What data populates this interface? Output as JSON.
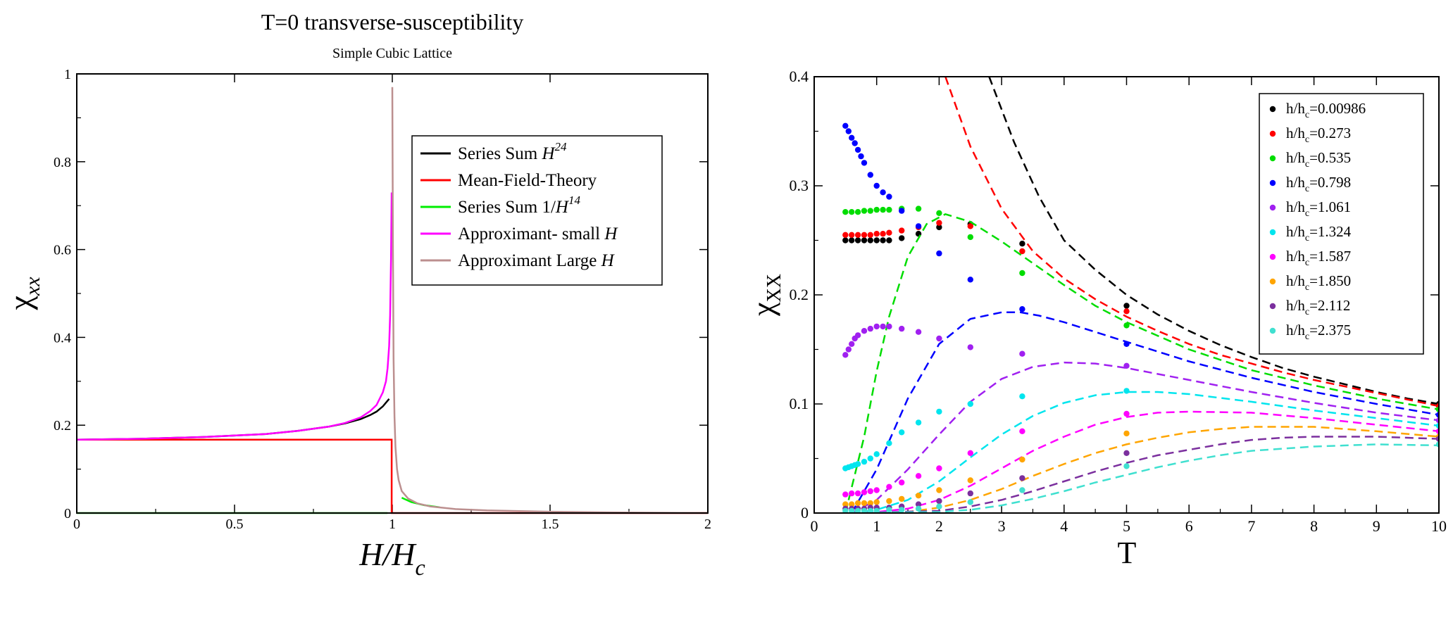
{
  "chart_data": [
    {
      "type": "line",
      "title": "T=0 transverse-susceptibility",
      "subtitle": "Simple Cubic Lattice",
      "xlabel": {
        "main": "H/H",
        "sub": "c"
      },
      "ylabel": {
        "main": "χ",
        "sub": "xx"
      },
      "xlim": [
        0,
        2
      ],
      "ylim": [
        0,
        1
      ],
      "xticks": [
        0,
        0.5,
        1,
        1.5,
        2
      ],
      "xtick_labels": [
        "0",
        "0.5",
        "1",
        "1.5",
        "2"
      ],
      "yticks": [
        0,
        0.2,
        0.4,
        0.6,
        0.8,
        1
      ],
      "ytick_labels": [
        "0",
        "0.2",
        "0.4",
        "0.6",
        "0.8",
        "1"
      ],
      "legend": [
        {
          "label": "Series Sum ",
          "italic": "H",
          "sup": "24",
          "color": "#000000"
        },
        {
          "label": "Mean-Field-Theory",
          "italic": "",
          "sup": "",
          "color": "#ff0000"
        },
        {
          "label": "Series Sum 1/",
          "italic": "H",
          "sup": "14",
          "color": "#00ee00"
        },
        {
          "label": "Approximant- small ",
          "italic": "H",
          "sup": "",
          "color": "#ff00ff"
        },
        {
          "label": "Approximant Large ",
          "italic": "H",
          "sup": "",
          "color": "#bc8f8f"
        }
      ],
      "series": [
        {
          "name": "Series Sum H^24",
          "color": "#000000",
          "x": [
            0,
            0.2,
            0.4,
            0.6,
            0.7,
            0.8,
            0.85,
            0.9,
            0.93,
            0.95,
            0.97,
            0.99
          ],
          "y": [
            0.167,
            0.169,
            0.173,
            0.18,
            0.187,
            0.197,
            0.204,
            0.214,
            0.223,
            0.231,
            0.243,
            0.26
          ]
        },
        {
          "name": "Mean-Field-Theory",
          "color": "#ff0000",
          "x": [
            0,
            0.998,
            0.998,
            2
          ],
          "y": [
            0.167,
            0.167,
            0.0,
            0.0
          ]
        },
        {
          "name": "Series Sum 1/H^14",
          "color": "#00ee00",
          "x": [
            0,
            0.985
          ],
          "y": [
            0.0,
            0.0
          ]
        },
        {
          "name": "Series Sum 1/H^14 (H>1)",
          "color": "#00ee00",
          "x": [
            1.03,
            1.06,
            1.1,
            1.15
          ],
          "y": [
            0.035,
            0.025,
            0.018,
            0.013
          ]
        },
        {
          "name": "Approximant- small H",
          "color": "#ff00ff",
          "x": [
            0,
            0.2,
            0.4,
            0.6,
            0.7,
            0.8,
            0.85,
            0.9,
            0.93,
            0.95,
            0.97,
            0.98,
            0.985,
            0.99,
            0.993,
            0.996,
            0.998
          ],
          "y": [
            0.167,
            0.169,
            0.173,
            0.18,
            0.187,
            0.197,
            0.205,
            0.218,
            0.232,
            0.246,
            0.275,
            0.3,
            0.33,
            0.38,
            0.45,
            0.58,
            0.73
          ]
        },
        {
          "name": "Approximant Large H",
          "color": "#bc8f8f",
          "x": [
            1.0,
            1.002,
            1.004,
            1.007,
            1.01,
            1.015,
            1.02,
            1.03,
            1.05,
            1.08,
            1.12,
            1.2,
            1.3,
            1.5,
            1.7,
            2.0
          ],
          "y": [
            0.97,
            0.6,
            0.35,
            0.22,
            0.15,
            0.1,
            0.075,
            0.05,
            0.033,
            0.022,
            0.015,
            0.009,
            0.006,
            0.003,
            0.0015,
            0.0
          ]
        }
      ]
    },
    {
      "type": "scatter",
      "title": "",
      "xlabel": {
        "main": "T",
        "sub": ""
      },
      "ylabel": {
        "main": "χ",
        "sub": "XX"
      },
      "xlim": [
        0,
        10
      ],
      "ylim": [
        0,
        0.4
      ],
      "xticks": [
        0,
        1,
        2,
        3,
        4,
        5,
        6,
        7,
        8,
        9,
        10
      ],
      "xtick_labels": [
        "0",
        "1",
        "2",
        "3",
        "4",
        "5",
        "6",
        "7",
        "8",
        "9",
        "10"
      ],
      "yticks": [
        0,
        0.1,
        0.2,
        0.3,
        0.4
      ],
      "ytick_labels": [
        "0",
        "0.1",
        "0.2",
        "0.3",
        "0.4"
      ],
      "legend": [
        {
          "prefix": "h/h",
          "sub": "c",
          "value": "=0.00986",
          "color": "#000000"
        },
        {
          "prefix": "h/h",
          "sub": "c",
          "value": "=0.273",
          "color": "#ff0000"
        },
        {
          "prefix": "h/h",
          "sub": "c",
          "value": "=0.535",
          "color": "#00dd00"
        },
        {
          "prefix": "h/h",
          "sub": "c",
          "value": "=0.798",
          "color": "#0000ff"
        },
        {
          "prefix": "h/h",
          "sub": "c",
          "value": "=1.061",
          "color": "#a020f0"
        },
        {
          "prefix": "h/h",
          "sub": "c",
          "value": "=1.324",
          "color": "#00e5ee"
        },
        {
          "prefix": "h/h",
          "sub": "c",
          "value": "=1.587",
          "color": "#ff00ff"
        },
        {
          "prefix": "h/h",
          "sub": "c",
          "value": "=1.850",
          "color": "#ffa500"
        },
        {
          "prefix": "h/h",
          "sub": "c",
          "value": "=2.112",
          "color": "#7b2f9e"
        },
        {
          "prefix": "h/h",
          "sub": "c",
          "value": "=2.375",
          "color": "#40e0d0"
        }
      ],
      "series": [
        {
          "name": "h/hc=0.00986",
          "color": "#000000",
          "points_x": [
            0.5,
            0.6,
            0.7,
            0.8,
            0.9,
            1.0,
            1.1,
            1.2,
            1.4,
            1.67,
            2.0,
            2.5,
            3.33,
            5.0,
            10.0
          ],
          "points_y": [
            0.25,
            0.25,
            0.25,
            0.25,
            0.25,
            0.25,
            0.25,
            0.25,
            0.252,
            0.256,
            0.262,
            0.265,
            0.247,
            0.19,
            0.1
          ],
          "curve_x": [
            2.8,
            3.2,
            3.6,
            4.0,
            4.5,
            5.0,
            5.5,
            6.0,
            6.5,
            7.0,
            7.5,
            8.0,
            8.5,
            9.0,
            9.5,
            10.0
          ],
          "curve_y": [
            0.4,
            0.34,
            0.29,
            0.25,
            0.223,
            0.2,
            0.182,
            0.167,
            0.154,
            0.143,
            0.133,
            0.125,
            0.118,
            0.111,
            0.105,
            0.1
          ]
        },
        {
          "name": "h/hc=0.273",
          "color": "#ff0000",
          "points_x": [
            0.5,
            0.6,
            0.7,
            0.8,
            0.9,
            1.0,
            1.1,
            1.2,
            1.4,
            1.67,
            2.0,
            2.5,
            3.33,
            5.0,
            10.0
          ],
          "points_y": [
            0.255,
            0.255,
            0.255,
            0.255,
            0.255,
            0.256,
            0.256,
            0.257,
            0.259,
            0.262,
            0.266,
            0.263,
            0.24,
            0.185,
            0.098
          ],
          "curve_x": [
            2.1,
            2.5,
            3.0,
            3.5,
            4.0,
            4.5,
            5.0,
            5.5,
            6.0,
            6.5,
            7.0,
            7.5,
            8.0,
            8.5,
            9.0,
            9.5,
            10.0
          ],
          "curve_y": [
            0.4,
            0.336,
            0.279,
            0.24,
            0.215,
            0.196,
            0.18,
            0.167,
            0.155,
            0.145,
            0.137,
            0.129,
            0.122,
            0.116,
            0.11,
            0.104,
            0.098
          ]
        },
        {
          "name": "h/hc=0.535",
          "color": "#00dd00",
          "points_x": [
            0.5,
            0.6,
            0.7,
            0.8,
            0.9,
            1.0,
            1.1,
            1.2,
            1.4,
            1.67,
            2.0,
            2.5,
            3.33,
            5.0,
            10.0
          ],
          "points_y": [
            0.276,
            0.276,
            0.276,
            0.277,
            0.277,
            0.278,
            0.278,
            0.278,
            0.279,
            0.279,
            0.275,
            0.253,
            0.22,
            0.172,
            0.095
          ],
          "curve_x": [
            0.5,
            0.8,
            1.0,
            1.2,
            1.5,
            1.8,
            2.1,
            2.5,
            3.0,
            3.5,
            4.0,
            4.5,
            5.0,
            6.0,
            7.0,
            8.0,
            9.0,
            10.0
          ],
          "curve_y": [
            0.0,
            0.07,
            0.13,
            0.18,
            0.235,
            0.265,
            0.274,
            0.267,
            0.249,
            0.229,
            0.209,
            0.19,
            0.175,
            0.15,
            0.131,
            0.117,
            0.105,
            0.095
          ]
        },
        {
          "name": "h/hc=0.798",
          "color": "#0000ff",
          "points_x": [
            0.5,
            0.55,
            0.6,
            0.65,
            0.7,
            0.75,
            0.8,
            0.9,
            1.0,
            1.1,
            1.2,
            1.4,
            1.67,
            2.0,
            2.5,
            3.33,
            5.0,
            10.0
          ],
          "points_y": [
            0.355,
            0.35,
            0.344,
            0.339,
            0.333,
            0.327,
            0.321,
            0.31,
            0.3,
            0.294,
            0.29,
            0.277,
            0.263,
            0.238,
            0.214,
            0.187,
            0.155,
            0.09
          ],
          "curve_x": [
            0.6,
            1.0,
            1.5,
            2.0,
            2.5,
            3.0,
            3.3,
            3.6,
            4.0,
            5.0,
            6.0,
            7.0,
            8.0,
            9.0,
            10.0
          ],
          "curve_y": [
            0.0,
            0.04,
            0.105,
            0.155,
            0.178,
            0.184,
            0.184,
            0.181,
            0.175,
            0.157,
            0.139,
            0.124,
            0.111,
            0.1,
            0.09
          ]
        },
        {
          "name": "h/hc=1.061",
          "color": "#a020f0",
          "points_x": [
            0.5,
            0.55,
            0.6,
            0.65,
            0.7,
            0.8,
            0.9,
            1.0,
            1.1,
            1.2,
            1.4,
            1.67,
            2.0,
            2.5,
            3.33,
            5.0,
            10.0
          ],
          "points_y": [
            0.145,
            0.15,
            0.155,
            0.16,
            0.163,
            0.167,
            0.169,
            0.171,
            0.171,
            0.171,
            0.169,
            0.166,
            0.16,
            0.152,
            0.146,
            0.135,
            0.085
          ],
          "curve_x": [
            0.6,
            1.0,
            1.5,
            2.0,
            2.5,
            3.0,
            3.5,
            4.0,
            4.5,
            5.0,
            6.0,
            7.0,
            8.0,
            9.0,
            10.0
          ],
          "curve_y": [
            0.0,
            0.012,
            0.04,
            0.072,
            0.102,
            0.123,
            0.134,
            0.138,
            0.137,
            0.133,
            0.122,
            0.111,
            0.101,
            0.092,
            0.085
          ]
        },
        {
          "name": "h/hc=1.324",
          "color": "#00e5ee",
          "points_x": [
            0.5,
            0.55,
            0.6,
            0.65,
            0.7,
            0.8,
            0.9,
            1.0,
            1.2,
            1.4,
            1.67,
            2.0,
            2.5,
            3.33,
            5.0,
            10.0
          ],
          "points_y": [
            0.041,
            0.042,
            0.043,
            0.044,
            0.045,
            0.047,
            0.05,
            0.054,
            0.064,
            0.074,
            0.083,
            0.093,
            0.1,
            0.107,
            0.112,
            0.08
          ],
          "curve_x": [
            0.6,
            1.0,
            1.5,
            2.0,
            2.5,
            3.0,
            3.5,
            4.0,
            4.5,
            5.0,
            5.5,
            6.0,
            7.0,
            8.0,
            9.0,
            10.0
          ],
          "curve_y": [
            0.0,
            0.003,
            0.012,
            0.029,
            0.051,
            0.072,
            0.089,
            0.101,
            0.108,
            0.111,
            0.111,
            0.109,
            0.102,
            0.094,
            0.087,
            0.08
          ]
        },
        {
          "name": "h/hc=1.587",
          "color": "#ff00ff",
          "points_x": [
            0.5,
            0.6,
            0.7,
            0.8,
            0.9,
            1.0,
            1.2,
            1.4,
            1.67,
            2.0,
            2.5,
            3.33,
            5.0,
            10.0
          ],
          "points_y": [
            0.017,
            0.018,
            0.018,
            0.019,
            0.02,
            0.021,
            0.024,
            0.028,
            0.034,
            0.041,
            0.055,
            0.075,
            0.091,
            0.075
          ],
          "curve_x": [
            0.6,
            1.0,
            1.5,
            2.0,
            2.5,
            3.0,
            3.5,
            4.0,
            4.5,
            5.0,
            5.5,
            6.0,
            7.0,
            8.0,
            9.0,
            10.0
          ],
          "curve_y": [
            0.0,
            0.001,
            0.004,
            0.012,
            0.025,
            0.041,
            0.057,
            0.07,
            0.081,
            0.088,
            0.092,
            0.093,
            0.092,
            0.087,
            0.081,
            0.075
          ]
        },
        {
          "name": "h/hc=1.850",
          "color": "#ffa500",
          "points_x": [
            0.5,
            0.6,
            0.7,
            0.8,
            0.9,
            1.0,
            1.2,
            1.4,
            1.67,
            2.0,
            2.5,
            3.33,
            5.0,
            10.0
          ],
          "points_y": [
            0.008,
            0.008,
            0.009,
            0.009,
            0.009,
            0.01,
            0.011,
            0.013,
            0.016,
            0.021,
            0.03,
            0.049,
            0.073,
            0.07
          ],
          "curve_x": [
            0.6,
            1.5,
            2.0,
            2.5,
            3.0,
            3.5,
            4.0,
            4.5,
            5.0,
            5.5,
            6.0,
            6.5,
            7.0,
            8.0,
            9.0,
            10.0
          ],
          "curve_y": [
            0.0,
            0.001,
            0.005,
            0.012,
            0.022,
            0.034,
            0.045,
            0.055,
            0.063,
            0.069,
            0.074,
            0.077,
            0.079,
            0.079,
            0.075,
            0.07
          ]
        },
        {
          "name": "h/hc=2.112",
          "color": "#7b2f9e",
          "points_x": [
            0.5,
            0.6,
            0.7,
            0.8,
            0.9,
            1.0,
            1.2,
            1.4,
            1.67,
            2.0,
            2.5,
            3.33,
            5.0,
            10.0
          ],
          "points_y": [
            0.004,
            0.004,
            0.004,
            0.004,
            0.005,
            0.005,
            0.005,
            0.006,
            0.008,
            0.011,
            0.018,
            0.032,
            0.055,
            0.068
          ],
          "curve_x": [
            0.6,
            2.0,
            2.5,
            3.0,
            3.5,
            4.0,
            4.5,
            5.0,
            5.5,
            6.0,
            6.5,
            7.0,
            7.5,
            8.0,
            9.0,
            10.0
          ],
          "curve_y": [
            0.0,
            0.002,
            0.006,
            0.012,
            0.02,
            0.029,
            0.038,
            0.046,
            0.053,
            0.058,
            0.063,
            0.067,
            0.069,
            0.07,
            0.07,
            0.068
          ]
        },
        {
          "name": "h/hc=2.375",
          "color": "#40e0d0",
          "points_x": [
            0.5,
            0.6,
            0.7,
            0.8,
            0.9,
            1.0,
            1.2,
            1.4,
            1.67,
            2.0,
            2.5,
            3.33,
            5.0,
            10.0
          ],
          "points_y": [
            0.002,
            0.002,
            0.002,
            0.002,
            0.002,
            0.002,
            0.003,
            0.003,
            0.004,
            0.006,
            0.01,
            0.021,
            0.043,
            0.063
          ],
          "curve_x": [
            0.6,
            2.0,
            2.5,
            3.0,
            3.5,
            4.0,
            4.5,
            5.0,
            5.5,
            6.0,
            6.5,
            7.0,
            8.0,
            9.0,
            10.0
          ],
          "curve_y": [
            0.0,
            0.001,
            0.003,
            0.007,
            0.013,
            0.02,
            0.028,
            0.035,
            0.042,
            0.048,
            0.053,
            0.057,
            0.061,
            0.063,
            0.062
          ]
        }
      ]
    }
  ]
}
